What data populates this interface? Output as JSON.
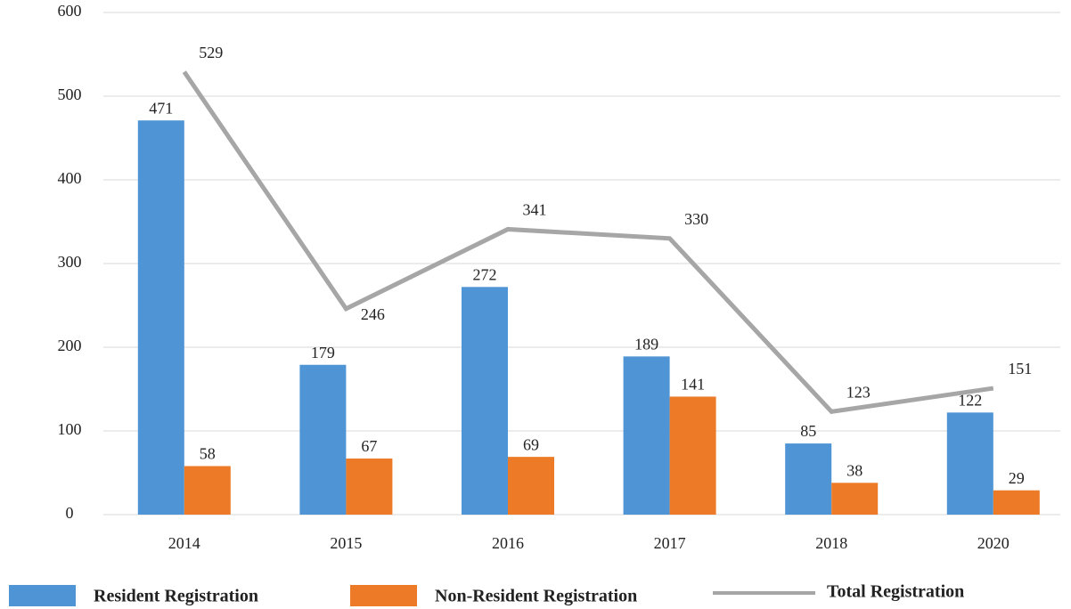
{
  "chart_data": {
    "type": "bar",
    "categories": [
      "2014",
      "2015",
      "2016",
      "2017",
      "2018",
      "2020"
    ],
    "series": [
      {
        "name": "Resident Registration",
        "type": "bar",
        "color": "#4f94d4",
        "values": [
          471,
          179,
          272,
          189,
          85,
          122
        ]
      },
      {
        "name": "Non-Resident Registration",
        "type": "bar",
        "color": "#ec7a26",
        "values": [
          58,
          67,
          69,
          141,
          38,
          29
        ]
      },
      {
        "name": "Total Registration",
        "type": "line",
        "color": "#a6a6a6",
        "values": [
          529,
          246,
          341,
          330,
          123,
          151
        ]
      }
    ],
    "ylim": [
      0,
      600
    ],
    "yticks": [
      0,
      100,
      200,
      300,
      400,
      500,
      600
    ],
    "grid": true,
    "legend": "bottom"
  }
}
